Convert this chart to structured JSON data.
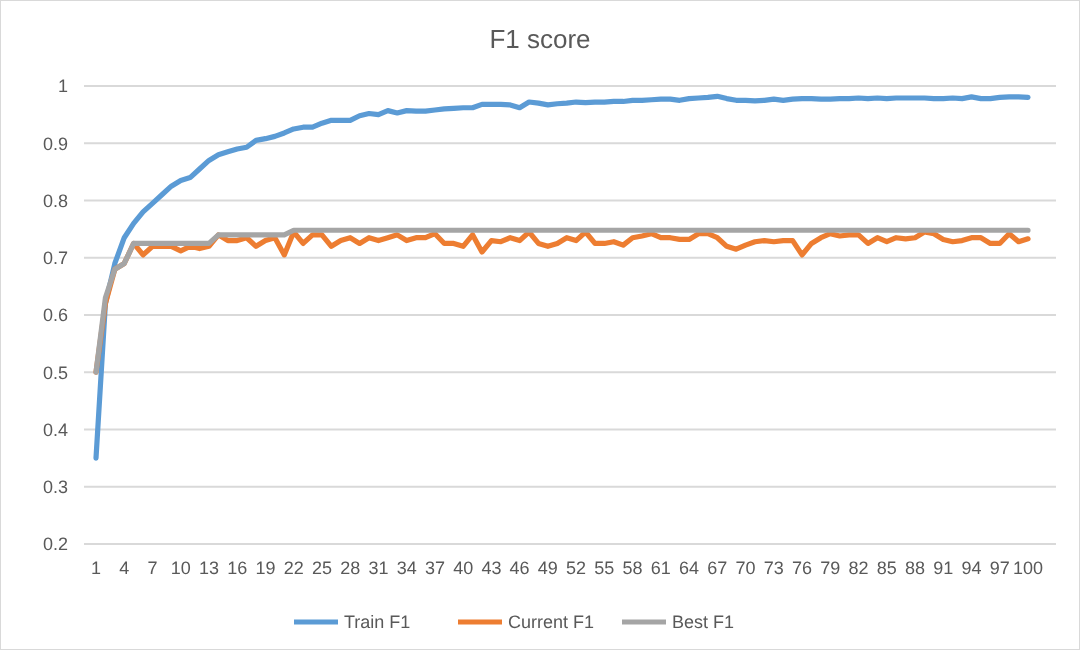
{
  "chart_data": {
    "type": "line",
    "title": "F1 score",
    "categories": [
      "1",
      null,
      null,
      "4",
      null,
      null,
      "7",
      null,
      null,
      "10",
      null,
      null,
      "13",
      null,
      null,
      "16",
      null,
      null,
      "19",
      null,
      null,
      "22",
      null,
      null,
      "25",
      null,
      null,
      "28",
      null,
      null,
      "31",
      null,
      null,
      "34",
      null,
      null,
      "37",
      null,
      null,
      "40",
      null,
      null,
      "43",
      null,
      null,
      "46",
      null,
      null,
      "49",
      null,
      null,
      "52",
      null,
      null,
      "55",
      null,
      null,
      "58",
      null,
      null,
      "61",
      null,
      null,
      "64",
      null,
      null,
      "67",
      null,
      null,
      "70",
      null,
      null,
      "73",
      null,
      null,
      "76",
      null,
      null,
      "79",
      null,
      null,
      "82",
      null,
      null,
      "85",
      null,
      null,
      "88",
      null,
      null,
      "91",
      null,
      null,
      "94",
      null,
      null,
      "97",
      null,
      null,
      "100"
    ],
    "ylim": [
      0.2,
      1
    ],
    "yticks": [
      0.2,
      0.3,
      0.4,
      0.5,
      0.6,
      0.7,
      0.8,
      0.9,
      1
    ],
    "grid": "y",
    "legend": "bottom",
    "marker": "none",
    "line_style": "solid",
    "series": [
      {
        "name": "Train F1",
        "color": "#5b9bd5",
        "values": [
          0.35,
          0.62,
          0.69,
          0.735,
          0.76,
          0.78,
          0.795,
          0.81,
          0.825,
          0.835,
          0.84,
          0.855,
          0.87,
          0.88,
          0.885,
          0.89,
          0.893,
          0.905,
          0.908,
          0.912,
          0.918,
          0.925,
          0.928,
          0.928,
          0.935,
          0.94,
          0.94,
          0.94,
          0.948,
          0.952,
          0.95,
          0.957,
          0.953,
          0.957,
          0.956,
          0.956,
          0.958,
          0.96,
          0.961,
          0.962,
          0.962,
          0.968,
          0.968,
          0.968,
          0.967,
          0.962,
          0.972,
          0.97,
          0.967,
          0.969,
          0.97,
          0.972,
          0.971,
          0.972,
          0.972,
          0.973,
          0.973,
          0.975,
          0.975,
          0.976,
          0.977,
          0.977,
          0.975,
          0.978,
          0.979,
          0.98,
          0.982,
          0.978,
          0.975,
          0.975,
          0.974,
          0.975,
          0.977,
          0.975,
          0.977,
          0.978,
          0.978,
          0.977,
          0.977,
          0.978,
          0.978,
          0.979,
          0.978,
          0.979,
          0.978,
          0.979,
          0.979,
          0.979,
          0.979,
          0.978,
          0.978,
          0.979,
          0.978,
          0.981,
          0.978,
          0.978,
          0.98,
          0.981,
          0.981,
          0.98
        ]
      },
      {
        "name": "Current F1",
        "color": "#ed7d31",
        "values": [
          0.5,
          0.62,
          0.68,
          0.69,
          0.725,
          0.705,
          0.72,
          0.72,
          0.72,
          0.712,
          0.72,
          0.716,
          0.72,
          0.74,
          0.73,
          0.73,
          0.735,
          0.72,
          0.73,
          0.735,
          0.705,
          0.745,
          0.725,
          0.74,
          0.74,
          0.72,
          0.73,
          0.735,
          0.725,
          0.735,
          0.73,
          0.735,
          0.74,
          0.73,
          0.735,
          0.735,
          0.742,
          0.725,
          0.725,
          0.72,
          0.74,
          0.71,
          0.73,
          0.728,
          0.735,
          0.73,
          0.745,
          0.725,
          0.72,
          0.725,
          0.735,
          0.73,
          0.745,
          0.725,
          0.725,
          0.728,
          0.722,
          0.735,
          0.738,
          0.742,
          0.735,
          0.735,
          0.732,
          0.732,
          0.742,
          0.742,
          0.735,
          0.72,
          0.715,
          0.722,
          0.728,
          0.73,
          0.728,
          0.73,
          0.73,
          0.705,
          0.725,
          0.735,
          0.742,
          0.738,
          0.74,
          0.74,
          0.725,
          0.735,
          0.728,
          0.735,
          0.733,
          0.735,
          0.745,
          0.742,
          0.732,
          0.728,
          0.73,
          0.735,
          0.735,
          0.725,
          0.725,
          0.742,
          0.728,
          0.733
        ]
      },
      {
        "name": "Best F1",
        "color": "#a5a5a5",
        "values": [
          0.5,
          0.63,
          0.68,
          0.69,
          0.725,
          0.725,
          0.725,
          0.725,
          0.725,
          0.725,
          0.725,
          0.725,
          0.725,
          0.74,
          0.74,
          0.74,
          0.74,
          0.74,
          0.74,
          0.74,
          0.74,
          0.748,
          0.748,
          0.748,
          0.748,
          0.748,
          0.748,
          0.748,
          0.748,
          0.748,
          0.748,
          0.748,
          0.748,
          0.748,
          0.748,
          0.748,
          0.748,
          0.748,
          0.748,
          0.748,
          0.748,
          0.748,
          0.748,
          0.748,
          0.748,
          0.748,
          0.748,
          0.748,
          0.748,
          0.748,
          0.748,
          0.748,
          0.748,
          0.748,
          0.748,
          0.748,
          0.748,
          0.748,
          0.748,
          0.748,
          0.748,
          0.748,
          0.748,
          0.748,
          0.748,
          0.748,
          0.748,
          0.748,
          0.748,
          0.748,
          0.748,
          0.748,
          0.748,
          0.748,
          0.748,
          0.748,
          0.748,
          0.748,
          0.748,
          0.748,
          0.748,
          0.748,
          0.748,
          0.748,
          0.748,
          0.748,
          0.748,
          0.748,
          0.748,
          0.748,
          0.748,
          0.748,
          0.748,
          0.748,
          0.748,
          0.748,
          0.748,
          0.748,
          0.748,
          0.748
        ]
      }
    ]
  }
}
